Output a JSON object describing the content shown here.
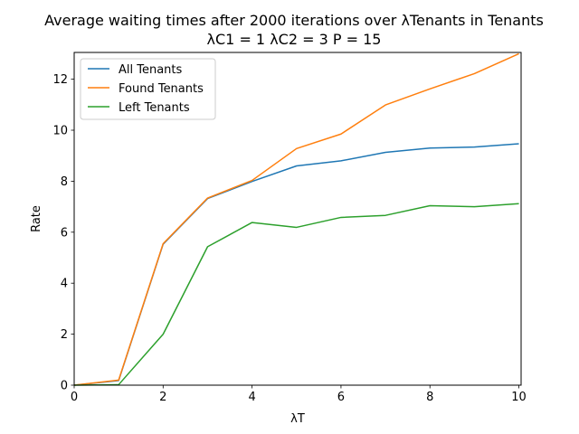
{
  "chart_data": {
    "type": "line",
    "title": "Average waiting times after 2000 iterations over λTenants in Tenants",
    "subtitle": "λC1 = 1 λC2 = 3 P = 15",
    "xlabel": "λT",
    "ylabel": "Rate",
    "xlim": [
      0,
      10.05
    ],
    "ylim": [
      0,
      13.05
    ],
    "xticks": [
      0,
      2,
      4,
      6,
      8,
      10
    ],
    "yticks": [
      0,
      2,
      4,
      6,
      8,
      10,
      12
    ],
    "grid": false,
    "legend_position": "top-left",
    "x": [
      0,
      1,
      2,
      3,
      4,
      5,
      6,
      7,
      8,
      9,
      10
    ],
    "series": [
      {
        "name": "All Tenants",
        "color": "#1f77b4",
        "values": [
          0,
          0.18,
          5.53,
          7.32,
          7.99,
          8.6,
          8.8,
          9.13,
          9.3,
          9.34,
          9.47
        ]
      },
      {
        "name": "Found Tenants",
        "color": "#ff7f0e",
        "values": [
          0,
          0.2,
          5.55,
          7.34,
          8.03,
          9.28,
          9.85,
          10.99,
          11.62,
          12.22,
          13.0
        ]
      },
      {
        "name": "Left Tenants",
        "color": "#2ca02c",
        "values": [
          0,
          0.02,
          2.0,
          5.43,
          6.38,
          6.19,
          6.58,
          6.66,
          7.04,
          7.0,
          7.12
        ]
      }
    ]
  }
}
